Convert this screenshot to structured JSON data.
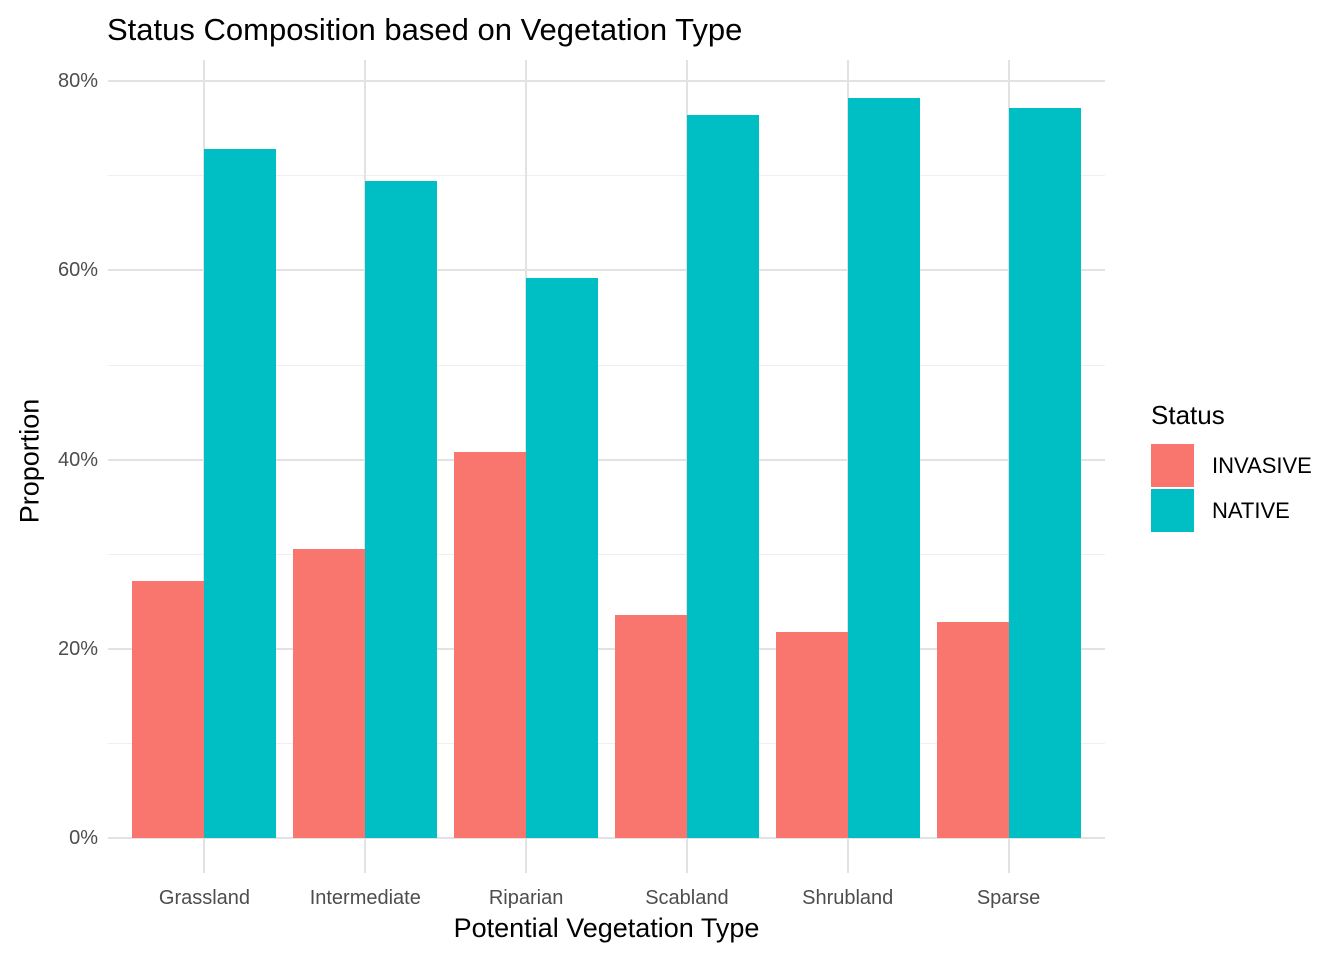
{
  "title": "Status Composition based on Vegetation Type",
  "chart_data": {
    "type": "bar",
    "grouped": true,
    "title": "Status Composition based on Vegetation Type",
    "xlabel": "Potential Vegetation Type",
    "ylabel": "Proportion",
    "categories": [
      "Grassland",
      "Intermediate",
      "Riparian",
      "Scabland",
      "Shrubland",
      "Sparse"
    ],
    "series": [
      {
        "name": "INVASIVE",
        "color": "#F8766D",
        "values": [
          27.2,
          30.6,
          40.8,
          23.6,
          21.8,
          22.8
        ]
      },
      {
        "name": "NATIVE",
        "color": "#00BFC4",
        "values": [
          72.8,
          69.4,
          59.2,
          76.4,
          78.2,
          77.2
        ]
      }
    ],
    "y_axis": {
      "tick_values": [
        0,
        20,
        40,
        60,
        80
      ],
      "tick_labels": [
        "0%",
        "20%",
        "40%",
        "60%",
        "80%"
      ],
      "minor_tick_values": [
        10,
        30,
        50,
        70
      ],
      "range": [
        0,
        82.3
      ],
      "unit": "percent"
    },
    "legend": {
      "title": "Status",
      "position": "right",
      "entries": [
        "INVASIVE",
        "NATIVE"
      ]
    },
    "grid": true
  },
  "colors": {
    "background": "#FFFFFF",
    "invasive": "#F8766D",
    "native": "#00BFC4",
    "grid_major": "#E2E2E2",
    "grid_minor": "#EFEFEF",
    "axis_text": "#4D4D4D",
    "text": "#000000"
  }
}
